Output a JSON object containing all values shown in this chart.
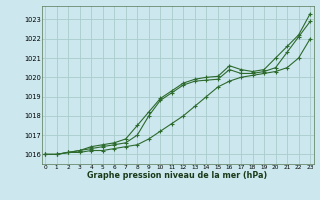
{
  "background_color": "#cce8ee",
  "grid_color": "#aacccc",
  "line_color": "#2d6a2d",
  "xlabel": "Graphe pression niveau de la mer (hPa)",
  "ylim": [
    1015.5,
    1023.7
  ],
  "xlim": [
    -0.3,
    23.3
  ],
  "yticks": [
    1016,
    1017,
    1018,
    1019,
    1020,
    1021,
    1022,
    1023
  ],
  "xticks": [
    0,
    1,
    2,
    3,
    4,
    5,
    6,
    7,
    8,
    9,
    10,
    11,
    12,
    13,
    14,
    15,
    16,
    17,
    18,
    19,
    20,
    21,
    22,
    23
  ],
  "series1_x": [
    0,
    1,
    2,
    3,
    4,
    5,
    6,
    7,
    8,
    9,
    10,
    11,
    12,
    13,
    14,
    15,
    16,
    17,
    18,
    19,
    20,
    21,
    22,
    23
  ],
  "series1_y": [
    1016.0,
    1016.0,
    1016.1,
    1016.1,
    1016.2,
    1016.2,
    1016.3,
    1016.4,
    1016.5,
    1016.8,
    1017.2,
    1017.6,
    1018.0,
    1018.5,
    1019.0,
    1019.5,
    1019.8,
    1020.0,
    1020.1,
    1020.2,
    1020.3,
    1020.5,
    1021.0,
    1022.0
  ],
  "series2_x": [
    0,
    1,
    2,
    3,
    4,
    5,
    6,
    7,
    8,
    9,
    10,
    11,
    12,
    13,
    14,
    15,
    16,
    17,
    18,
    19,
    20,
    21,
    22,
    23
  ],
  "series2_y": [
    1016.0,
    1016.0,
    1016.1,
    1016.2,
    1016.3,
    1016.4,
    1016.5,
    1016.6,
    1017.0,
    1018.0,
    1018.8,
    1019.2,
    1019.6,
    1019.8,
    1019.85,
    1019.9,
    1020.4,
    1020.2,
    1020.2,
    1020.3,
    1020.5,
    1021.3,
    1022.1,
    1022.9
  ],
  "series3_x": [
    0,
    1,
    2,
    3,
    4,
    5,
    6,
    7,
    8,
    9,
    10,
    11,
    12,
    13,
    14,
    15,
    16,
    17,
    18,
    19,
    20,
    21,
    22,
    23
  ],
  "series3_y": [
    1016.0,
    1016.0,
    1016.1,
    1016.2,
    1016.4,
    1016.5,
    1016.6,
    1016.8,
    1017.5,
    1018.2,
    1018.9,
    1019.3,
    1019.7,
    1019.9,
    1020.0,
    1020.05,
    1020.6,
    1020.4,
    1020.3,
    1020.4,
    1021.0,
    1021.6,
    1022.2,
    1023.3
  ]
}
